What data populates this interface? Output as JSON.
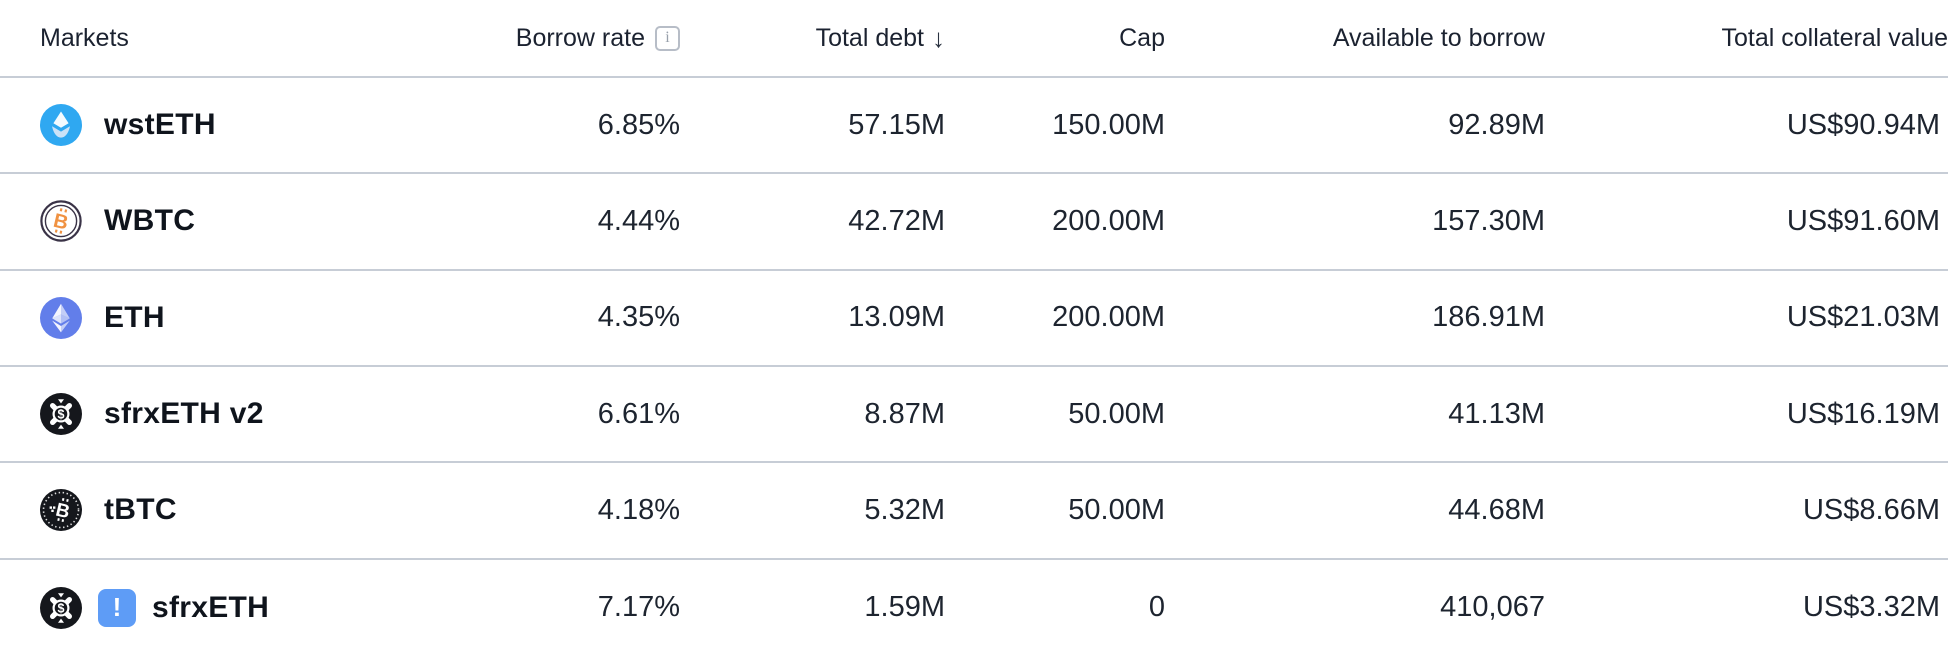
{
  "table": {
    "columns": [
      {
        "label": "Markets"
      },
      {
        "label": "Borrow rate",
        "info_glyph": "i"
      },
      {
        "label": "Total debt",
        "sort": "desc",
        "sort_glyph": "↓"
      },
      {
        "label": "Cap"
      },
      {
        "label": "Available to borrow"
      },
      {
        "label": "Total collateral value"
      }
    ],
    "rows": [
      {
        "icon": "lido-wsteth-icon",
        "market": "wstETH",
        "borrow_rate": "6.85%",
        "total_debt": "57.15M",
        "cap": "150.00M",
        "available_to_borrow": "92.89M",
        "total_collateral_value": "US$90.94M"
      },
      {
        "icon": "wbtc-icon",
        "market": "WBTC",
        "borrow_rate": "4.44%",
        "total_debt": "42.72M",
        "cap": "200.00M",
        "available_to_borrow": "157.30M",
        "total_collateral_value": "US$91.60M"
      },
      {
        "icon": "eth-icon",
        "market": "ETH",
        "borrow_rate": "4.35%",
        "total_debt": "13.09M",
        "cap": "200.00M",
        "available_to_borrow": "186.91M",
        "total_collateral_value": "US$21.03M"
      },
      {
        "icon": "frax-sfrxeth-icon",
        "market": "sfrxETH v2",
        "borrow_rate": "6.61%",
        "total_debt": "8.87M",
        "cap": "50.00M",
        "available_to_borrow": "41.13M",
        "total_collateral_value": "US$16.19M"
      },
      {
        "icon": "tbtc-icon",
        "market": "tBTC",
        "borrow_rate": "4.18%",
        "total_debt": "5.32M",
        "cap": "50.00M",
        "available_to_borrow": "44.68M",
        "total_collateral_value": "US$8.66M"
      },
      {
        "icon": "frax-sfrxeth-icon",
        "market": "sfrxETH",
        "warning_badge": true,
        "warning_glyph": "!",
        "borrow_rate": "7.17%",
        "total_debt": "1.59M",
        "cap": "0",
        "available_to_borrow": "410,067",
        "total_collateral_value": "US$3.32M"
      }
    ]
  },
  "colors": {
    "lido_blue": "#2FA8F1",
    "eth_indigo": "#627EEA",
    "wbtc_ring": "#3A3347",
    "wbtc_orange": "#F09242",
    "dark_token": "#15171C",
    "warning_badge_blue": "#5E9CF6",
    "row_divider": "#C7CDD6"
  }
}
